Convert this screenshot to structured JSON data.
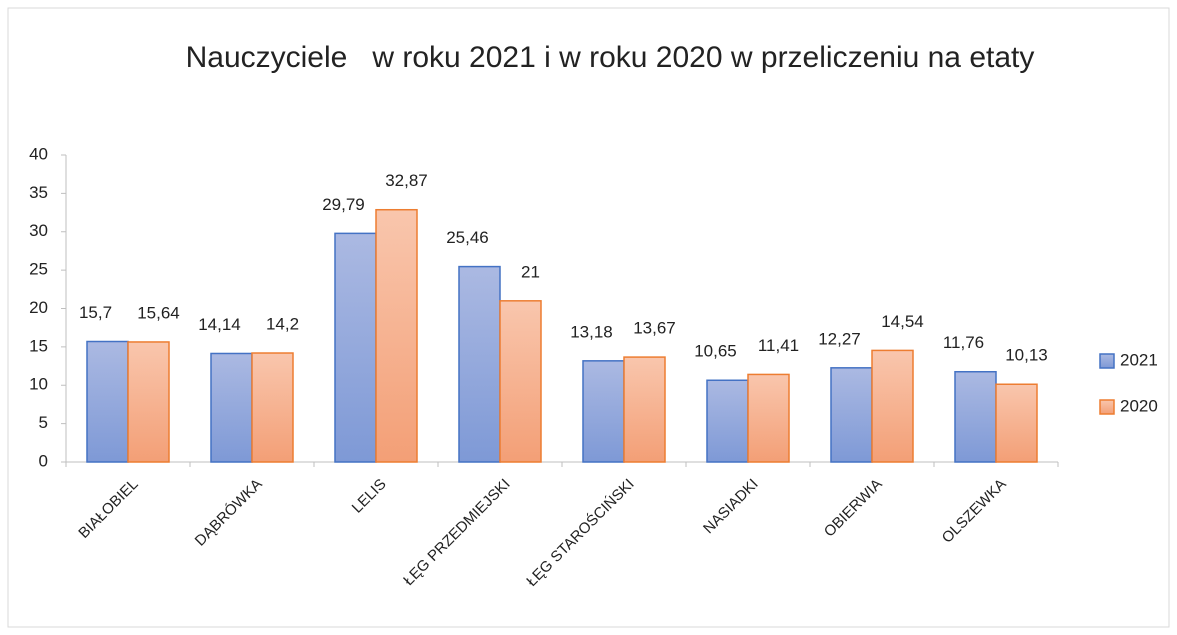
{
  "chart_data": {
    "type": "bar",
    "title": "Nauczyciele   w roku 2021 i w roku 2020 w przeliczeniu na etaty",
    "categories": [
      "BIAŁOBIEL",
      "DĄBRÓWKA",
      "LELIS",
      "ŁĘG PRZEDMIEJSKI",
      "ŁĘG STAROŚCIŃSKI",
      "NASIADKI",
      "OBIERWIA",
      "OLSZEWKA"
    ],
    "series": [
      {
        "name": "2021",
        "color": "#4472c4",
        "values": [
          15.7,
          14.14,
          29.79,
          25.46,
          13.18,
          10.65,
          12.27,
          11.76
        ],
        "value_labels": [
          "15,7",
          "14,14",
          "29,79",
          "25,46",
          "13,18",
          "10,65",
          "12,27",
          "11,76"
        ]
      },
      {
        "name": "2020",
        "color": "#ed7d31",
        "values": [
          15.64,
          14.2,
          32.87,
          21,
          13.67,
          11.41,
          14.54,
          10.13
        ],
        "value_labels": [
          "15,64",
          "14,2",
          "32,87",
          "21",
          "13,67",
          "11,41",
          "14,54",
          "10,13"
        ]
      }
    ],
    "ylim": [
      0,
      40
    ],
    "yticks": [
      0,
      5,
      10,
      15,
      20,
      25,
      30,
      35,
      40
    ],
    "grid": false,
    "legend": "right"
  }
}
